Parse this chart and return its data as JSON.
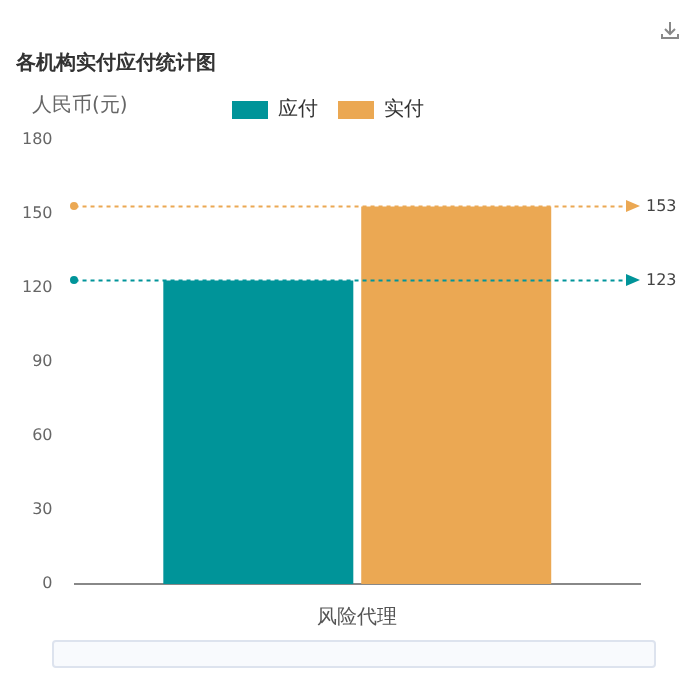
{
  "chart_data": {
    "type": "bar",
    "title": "各机构实付应付统计图",
    "ylabel": "人民币(元)",
    "categories": [
      "风险代理"
    ],
    "series": [
      {
        "name": "应付",
        "color": "#009499",
        "values": [
          123
        ]
      },
      {
        "name": "实付",
        "color": "#eba853",
        "values": [
          153
        ]
      }
    ],
    "ylim": [
      0,
      180
    ],
    "yticks": [
      0,
      30,
      60,
      90,
      120,
      150,
      180
    ],
    "grid": false,
    "legend": "top",
    "ref_lines": [
      {
        "axis": "y",
        "value": 153,
        "label": "153",
        "color": "#eba853",
        "line_style": "dotted"
      },
      {
        "axis": "y",
        "value": 123,
        "label": "123",
        "color": "#009499",
        "line_style": "dotted"
      }
    ]
  }
}
